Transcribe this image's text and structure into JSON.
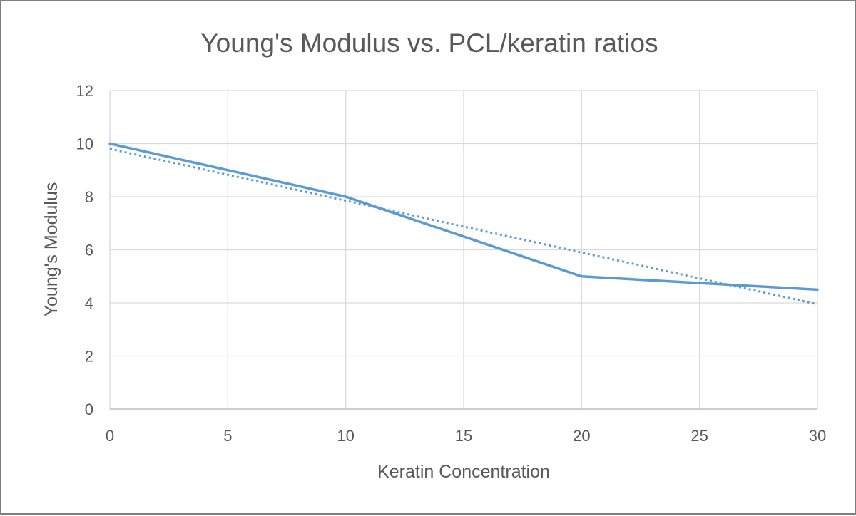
{
  "chart_data": {
    "type": "line",
    "title": "Young's Modulus vs. PCL/keratin ratios",
    "xlabel": "Keratin Concentration",
    "ylabel": "Young's Modulus",
    "xlim": [
      0,
      30
    ],
    "ylim": [
      0,
      12
    ],
    "x_ticks": [
      "0",
      "5",
      "10",
      "15",
      "20",
      "25",
      "30"
    ],
    "y_ticks": [
      "0",
      "2",
      "4",
      "6",
      "8",
      "10",
      "12"
    ],
    "grid": true,
    "legend": "none",
    "series": [
      {
        "name": "Young's Modulus",
        "style": "solid",
        "color": "#5b9bd5",
        "x": [
          0,
          10,
          15,
          20,
          30
        ],
        "y": [
          10,
          8,
          6.5,
          5,
          4.5
        ]
      },
      {
        "name": "Linear trendline",
        "style": "dotted",
        "color": "#5b9bd5",
        "x": [
          0,
          30
        ],
        "y": [
          9.8,
          3.95
        ]
      }
    ]
  }
}
